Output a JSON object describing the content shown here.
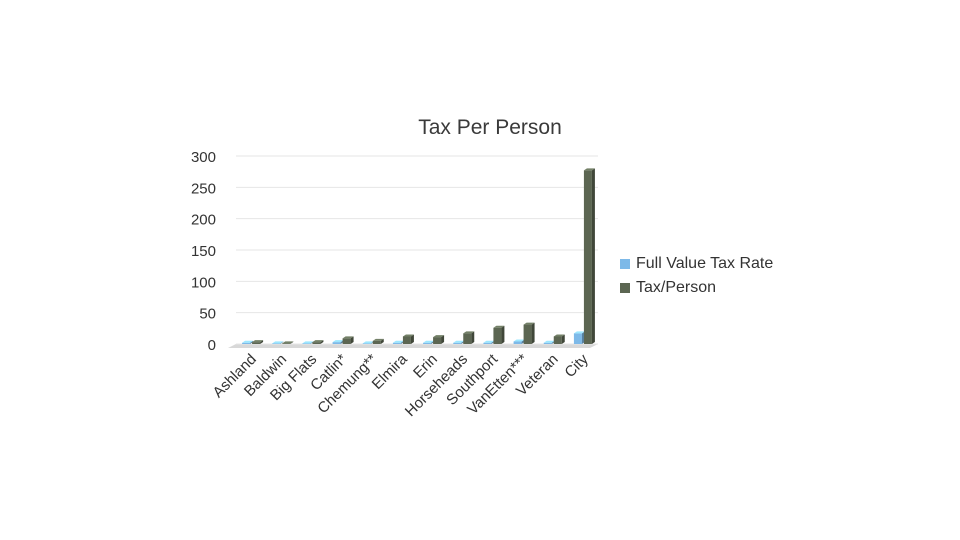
{
  "chart_data": {
    "type": "bar",
    "title": "Tax Per Person",
    "categories": [
      "Ashland",
      "Baldwin",
      "Big Flats",
      "Catlin*",
      "Chemung**",
      "Elmira",
      "Erin",
      "Horseheads",
      "Southport",
      "VanEtten***",
      "Veteran",
      "City"
    ],
    "series": [
      {
        "name": "Full Value Tax Rate",
        "color": "#7db9e8",
        "values": [
          2,
          1,
          1,
          3,
          1,
          2,
          2,
          2,
          2,
          4,
          2,
          17
        ]
      },
      {
        "name": "Tax/Person",
        "color": "#5c6652",
        "values": [
          3,
          1,
          3,
          9,
          5,
          12,
          11,
          17,
          26,
          31,
          12,
          277
        ]
      }
    ],
    "ylim": [
      0,
      300
    ],
    "yticks": [
      0,
      50,
      100,
      150,
      200,
      250,
      300
    ],
    "grid": true,
    "legend_position": "right",
    "xlabel": "",
    "ylabel": ""
  }
}
